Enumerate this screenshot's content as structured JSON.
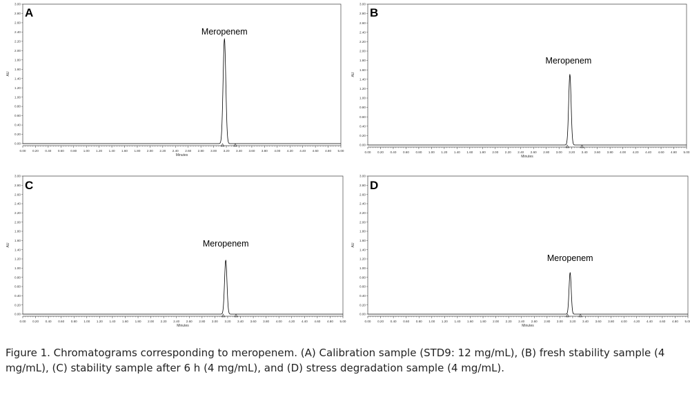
{
  "chart_data": [
    {
      "type": "line",
      "panel_label": "A",
      "xlabel": "Minutes",
      "ylabel": "AU",
      "xlim": [
        0,
        5
      ],
      "ylim": [
        0,
        3
      ],
      "x_ticks": [
        "0.00",
        "0.20",
        "0.40",
        "0.60",
        "0.80",
        "1.00",
        "1.20",
        "1.40",
        "1.60",
        "1.80",
        "2.00",
        "2.20",
        "2.40",
        "2.60",
        "2.80",
        "3.00",
        "3.20",
        "3.40",
        "3.60",
        "3.80",
        "4.00",
        "4.20",
        "4.40",
        "4.60",
        "4.80",
        "5.00"
      ],
      "y_ticks": [
        "0.00",
        "0.20",
        "0.40",
        "0.60",
        "0.80",
        "1.00",
        "1.20",
        "1.40",
        "1.60",
        "1.80",
        "2.00",
        "2.20",
        "2.40",
        "2.60",
        "2.80",
        "3.00"
      ],
      "peak": {
        "label": "Meropenem",
        "retention_time": 3.17,
        "height": 2.25,
        "width": 0.05
      },
      "markers": [
        3.14,
        3.34
      ],
      "grid": false
    },
    {
      "type": "line",
      "panel_label": "B",
      "xlabel": "Minutes",
      "ylabel": "AU",
      "xlim": [
        0,
        5
      ],
      "ylim": [
        0,
        3
      ],
      "x_ticks": [
        "0.00",
        "0.20",
        "0.40",
        "0.60",
        "0.80",
        "1.00",
        "1.20",
        "1.40",
        "1.60",
        "1.80",
        "2.00",
        "2.20",
        "2.40",
        "2.60",
        "2.80",
        "3.00",
        "3.20",
        "3.40",
        "3.60",
        "3.80",
        "4.00",
        "4.20",
        "4.40",
        "4.60",
        "4.80",
        "5.00"
      ],
      "y_ticks": [
        "0.00",
        "0.20",
        "0.40",
        "0.60",
        "0.80",
        "1.00",
        "1.20",
        "1.40",
        "1.60",
        "1.80",
        "2.00",
        "2.20",
        "2.40",
        "2.60",
        "2.80",
        "3.00"
      ],
      "peak": {
        "label": "Meropenem",
        "retention_time": 3.17,
        "height": 1.5,
        "width": 0.045
      },
      "markers": [
        3.13,
        3.36
      ],
      "grid": false
    },
    {
      "type": "line",
      "panel_label": "C",
      "xlabel": "Minutes",
      "ylabel": "AU",
      "xlim": [
        0,
        5
      ],
      "ylim": [
        0,
        3
      ],
      "x_ticks": [
        "0.00",
        "0.20",
        "0.40",
        "0.60",
        "0.80",
        "1.00",
        "1.20",
        "1.40",
        "1.60",
        "1.80",
        "2.00",
        "2.20",
        "2.40",
        "2.60",
        "2.80",
        "3.00",
        "3.20",
        "3.40",
        "3.60",
        "3.80",
        "4.00",
        "4.20",
        "4.40",
        "4.60",
        "4.80",
        "5.00"
      ],
      "y_ticks": [
        "0.00",
        "0.20",
        "0.40",
        "0.60",
        "0.80",
        "1.00",
        "1.20",
        "1.40",
        "1.60",
        "1.80",
        "2.00",
        "2.20",
        "2.40",
        "2.60",
        "2.80",
        "3.00"
      ],
      "peak": {
        "label": "Meropenem",
        "retention_time": 3.17,
        "height": 1.17,
        "width": 0.045
      },
      "markers": [
        3.13,
        3.33
      ],
      "grid": false
    },
    {
      "type": "line",
      "panel_label": "D",
      "xlabel": "Minutes",
      "ylabel": "AU",
      "xlim": [
        0,
        5
      ],
      "ylim": [
        0,
        3
      ],
      "x_ticks": [
        "0.00",
        "0.20",
        "0.40",
        "0.60",
        "0.80",
        "1.00",
        "1.20",
        "1.40",
        "1.60",
        "1.80",
        "2.00",
        "2.20",
        "2.40",
        "2.60",
        "2.80",
        "3.00",
        "3.20",
        "3.40",
        "3.60",
        "3.80",
        "4.00",
        "4.20",
        "4.40",
        "4.60",
        "4.80",
        "5.00"
      ],
      "y_ticks": [
        "0.00",
        "0.20",
        "0.40",
        "0.60",
        "0.80",
        "1.00",
        "1.20",
        "1.40",
        "1.60",
        "1.80",
        "2.00",
        "2.20",
        "2.40",
        "2.60",
        "2.80",
        "3.00"
      ],
      "peak": {
        "label": "Meropenem",
        "retention_time": 3.16,
        "height": 0.9,
        "width": 0.04
      },
      "markers": [
        3.12,
        3.32
      ],
      "grid": false
    }
  ],
  "caption": "Figure 1. Chromatograms corresponding to meropenem. (A) Calibration sample (STD9: 12 mg/mL), (B) fresh stability sample (4 mg/mL), (C) stability sample after 6 h (4 mg/mL), and (D) stress degradation sample (4 mg/mL).",
  "colors": {
    "trace": "#000000",
    "axis": "#444444",
    "marker": "#333333"
  }
}
